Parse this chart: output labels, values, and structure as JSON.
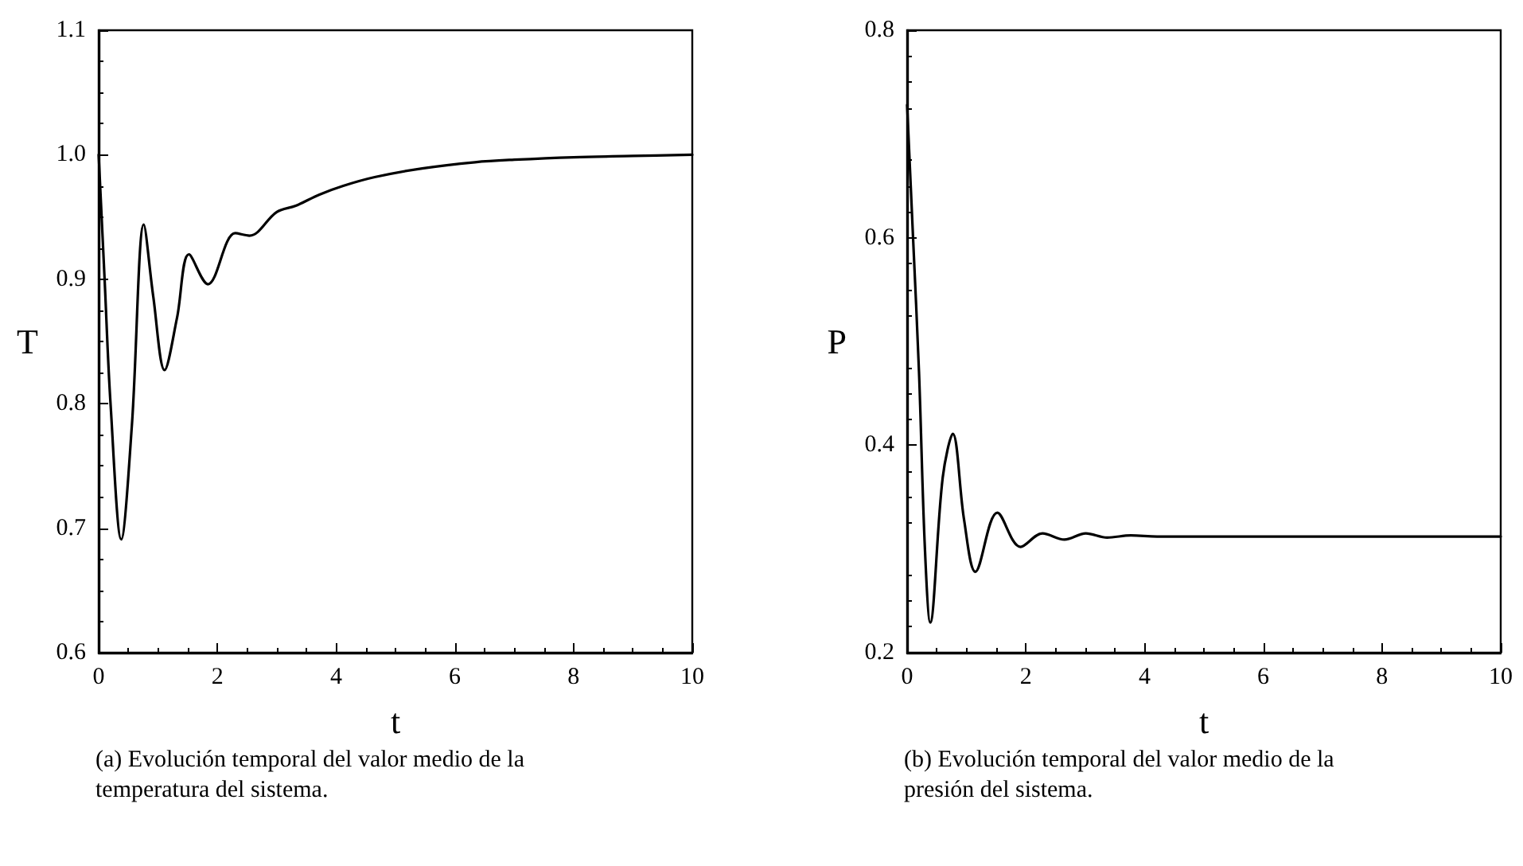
{
  "chart_data": [
    {
      "type": "line",
      "xlabel": "t",
      "ylabel": "T",
      "annotations": [
        "(a) Evolución temporal del valor medio de la temperatura del sistema."
      ],
      "xlim": [
        0,
        10
      ],
      "ylim": [
        0.6,
        1.1
      ],
      "xticks": [
        0,
        2,
        4,
        6,
        8,
        10
      ],
      "yticks": [
        0.6,
        0.7,
        0.8,
        0.9,
        {
          "value": 1,
          "label": "1.0"
        },
        1.1
      ],
      "grid": false,
      "marker": "none",
      "line_style": "solid",
      "series": [
        {
          "color": "#000000",
          "x": [
            0,
            0.1,
            0.2,
            0.38,
            0.56,
            0.76,
            0.92,
            1.11,
            1.32,
            1.52,
            1.84,
            2.3,
            2.54,
            3.0,
            3.32,
            3.72,
            4.12,
            4.65,
            5.45,
            6.34,
            7,
            8,
            9,
            10
          ],
          "values": [
            1.0,
            0.9,
            0.8,
            0.691,
            0.783,
            0.944,
            0.886,
            0.827,
            0.869,
            0.92,
            0.896,
            0.937,
            0.935,
            0.954,
            0.959,
            0.968,
            0.975,
            0.982,
            0.989,
            0.994,
            0.996,
            0.998,
            0.999,
            1.0
          ]
        }
      ]
    },
    {
      "type": "line",
      "xlabel": "t",
      "ylabel": "P",
      "annotations": [
        "(b) Evolución temporal del valor medio de la presión del sistema."
      ],
      "xlim": [
        0,
        10
      ],
      "ylim": [
        0.2,
        0.8
      ],
      "xticks": [
        0,
        2,
        4,
        6,
        8,
        10
      ],
      "yticks": [
        0.2,
        0.4,
        0.6,
        0.8
      ],
      "grid": false,
      "marker": "none",
      "line_style": "solid",
      "series": [
        {
          "color": "#000000",
          "x": [
            0,
            0.1,
            0.2,
            0.3,
            0.39,
            0.6,
            0.77,
            0.96,
            1.15,
            1.52,
            1.91,
            2.28,
            2.65,
            3.01,
            3.37,
            3.77,
            4.21,
            6,
            8,
            10
          ],
          "values": [
            0.728,
            0.6,
            0.471,
            0.3,
            0.229,
            0.369,
            0.411,
            0.328,
            0.278,
            0.335,
            0.302,
            0.315,
            0.309,
            0.315,
            0.311,
            0.313,
            0.312,
            0.312,
            0.312,
            0.312
          ]
        }
      ]
    }
  ]
}
